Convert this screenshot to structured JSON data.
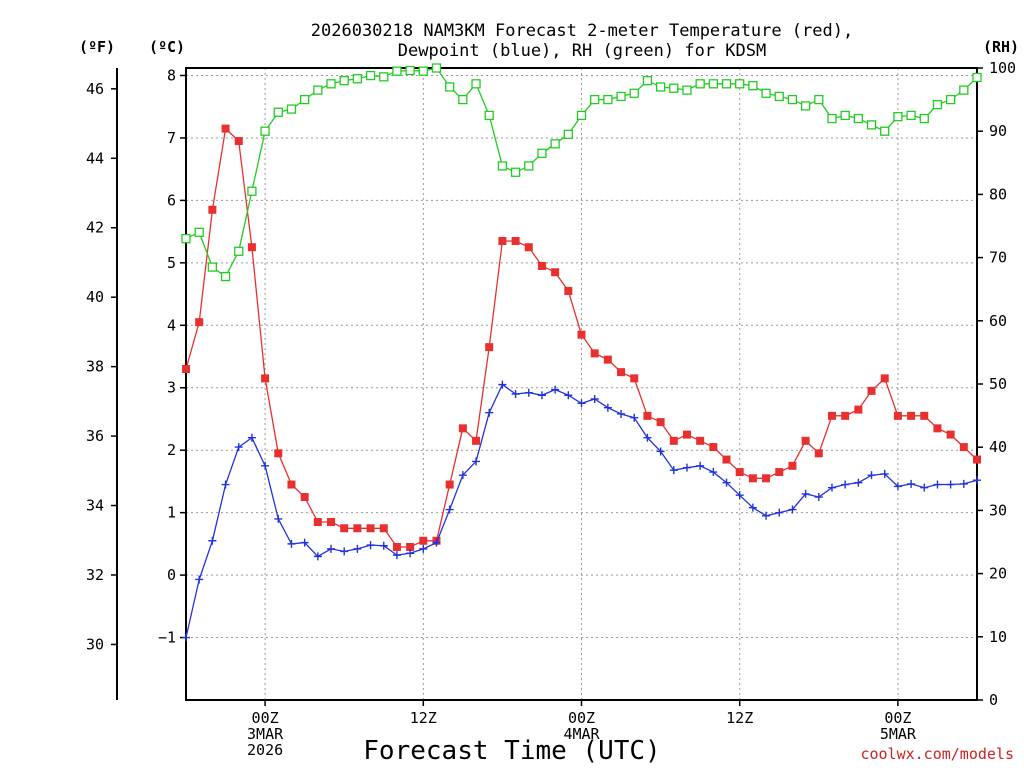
{
  "title_lines": [
    "2026030218 NAM3KM Forecast 2-meter Temperature (red),",
    "Dewpoint (blue), RH (green) for KDSM"
  ],
  "credit": "coolwx.com/models",
  "chart_data": {
    "type": "line",
    "title": "2026030218 NAM3KM Forecast 2-meter Temperature (red), Dewpoint (blue), RH (green) for KDSM",
    "xlabel": "Forecast Time (UTC)",
    "x_unit": "hours since 2026-03-02 18Z",
    "x_range": [
      0,
      60
    ],
    "xticks": [
      {
        "x": 6,
        "lines": [
          "00Z",
          "3MAR",
          "2026"
        ]
      },
      {
        "x": 18,
        "lines": [
          "12Z"
        ]
      },
      {
        "x": 30,
        "lines": [
          "00Z",
          "4MAR"
        ]
      },
      {
        "x": 42,
        "lines": [
          "12Z"
        ]
      },
      {
        "x": 54,
        "lines": [
          "00Z",
          "5MAR"
        ]
      }
    ],
    "axes": {
      "celsius": {
        "unit_label": "(ºC)",
        "range": [
          -2,
          8.12
        ],
        "ticks": [
          -1,
          0,
          1,
          2,
          3,
          4,
          5,
          6,
          7,
          8
        ]
      },
      "fahrenheit": {
        "unit_label": "(ºF)",
        "range": [
          28.4,
          46.6
        ],
        "ticks": [
          30,
          32,
          34,
          36,
          38,
          40,
          42,
          44,
          46
        ]
      },
      "rh": {
        "unit_label": "(RH)",
        "range": [
          0,
          100
        ],
        "ticks": [
          0,
          10,
          20,
          30,
          40,
          50,
          60,
          70,
          80,
          90,
          100
        ]
      }
    },
    "grid": true,
    "series": [
      {
        "key": "temperature",
        "axis": "celsius",
        "color": "#e83030",
        "marker": "filled-square",
        "x": [
          0,
          1,
          2,
          3,
          4,
          5,
          6,
          7,
          8,
          9,
          10,
          11,
          12,
          13,
          14,
          15,
          16,
          17,
          18,
          19,
          20,
          21,
          22,
          23,
          24,
          25,
          26,
          27,
          28,
          29,
          30,
          31,
          32,
          33,
          34,
          35,
          36,
          37,
          38,
          39,
          40,
          41,
          42,
          43,
          44,
          45,
          46,
          47,
          48,
          49,
          50,
          51,
          52,
          53,
          54,
          55,
          56,
          57,
          58,
          59,
          60
        ],
        "y": [
          3.3,
          4.05,
          5.85,
          7.15,
          6.95,
          5.25,
          3.15,
          1.95,
          1.45,
          1.25,
          0.85,
          0.85,
          0.75,
          0.75,
          0.75,
          0.75,
          0.45,
          0.45,
          0.55,
          0.55,
          1.45,
          2.35,
          2.15,
          3.65,
          5.35,
          5.35,
          5.25,
          4.95,
          4.85,
          4.55,
          3.85,
          3.55,
          3.45,
          3.25,
          3.15,
          2.55,
          2.45,
          2.15,
          2.25,
          2.15,
          2.05,
          1.85,
          1.65,
          1.55,
          1.55,
          1.65,
          1.75,
          2.15,
          1.95,
          2.55,
          2.55,
          2.65,
          2.95,
          3.15,
          2.55,
          2.55,
          2.55,
          2.35,
          2.25,
          2.05,
          1.85
        ]
      },
      {
        "key": "dewpoint",
        "axis": "celsius",
        "color": "#2233dd",
        "marker": "plus",
        "x": [
          0,
          1,
          2,
          3,
          4,
          5,
          6,
          7,
          8,
          9,
          10,
          11,
          12,
          13,
          14,
          15,
          16,
          17,
          18,
          19,
          20,
          21,
          22,
          23,
          24,
          25,
          26,
          27,
          28,
          29,
          30,
          31,
          32,
          33,
          34,
          35,
          36,
          37,
          38,
          39,
          40,
          41,
          42,
          43,
          44,
          45,
          46,
          47,
          48,
          49,
          50,
          51,
          52,
          53,
          54,
          55,
          56,
          57,
          58,
          59,
          60
        ],
        "y": [
          -1.0,
          -0.07,
          0.55,
          1.45,
          2.05,
          2.2,
          1.75,
          0.9,
          0.5,
          0.52,
          0.3,
          0.42,
          0.38,
          0.42,
          0.48,
          0.47,
          0.32,
          0.35,
          0.42,
          0.52,
          1.05,
          1.6,
          1.82,
          2.6,
          3.05,
          2.9,
          2.92,
          2.88,
          2.97,
          2.88,
          2.75,
          2.82,
          2.68,
          2.58,
          2.52,
          2.2,
          1.98,
          1.68,
          1.72,
          1.75,
          1.65,
          1.48,
          1.28,
          1.08,
          0.95,
          1.0,
          1.05,
          1.3,
          1.25,
          1.4,
          1.45,
          1.48,
          1.6,
          1.62,
          1.42,
          1.46,
          1.4,
          1.45,
          1.45,
          1.46,
          1.52
        ]
      },
      {
        "key": "rh",
        "axis": "rh",
        "color": "#22cc22",
        "marker": "open-square",
        "x": [
          0,
          1,
          2,
          3,
          4,
          5,
          6,
          7,
          8,
          9,
          10,
          11,
          12,
          13,
          14,
          15,
          16,
          17,
          18,
          19,
          20,
          21,
          22,
          23,
          24,
          25,
          26,
          27,
          28,
          29,
          30,
          31,
          32,
          33,
          34,
          35,
          36,
          37,
          38,
          39,
          40,
          41,
          42,
          43,
          44,
          45,
          46,
          47,
          48,
          49,
          50,
          51,
          52,
          53,
          54,
          55,
          56,
          57,
          58,
          59,
          60
        ],
        "y": [
          73.0,
          74.0,
          68.5,
          67.0,
          71.0,
          80.5,
          90.0,
          93.0,
          93.5,
          95.0,
          96.5,
          97.5,
          98.0,
          98.3,
          98.8,
          98.6,
          99.5,
          99.6,
          99.5,
          100.0,
          97.0,
          95.0,
          97.5,
          92.5,
          84.5,
          83.5,
          84.5,
          86.5,
          88.0,
          89.5,
          92.5,
          95.0,
          95.0,
          95.5,
          96.0,
          98.0,
          97.0,
          96.8,
          96.5,
          97.5,
          97.5,
          97.5,
          97.5,
          97.2,
          96.0,
          95.5,
          95.0,
          94.0,
          95.0,
          92.0,
          92.5,
          92.0,
          91.0,
          90.0,
          92.3,
          92.5,
          92.0,
          94.2,
          95.0,
          96.5,
          98.5
        ]
      }
    ]
  }
}
